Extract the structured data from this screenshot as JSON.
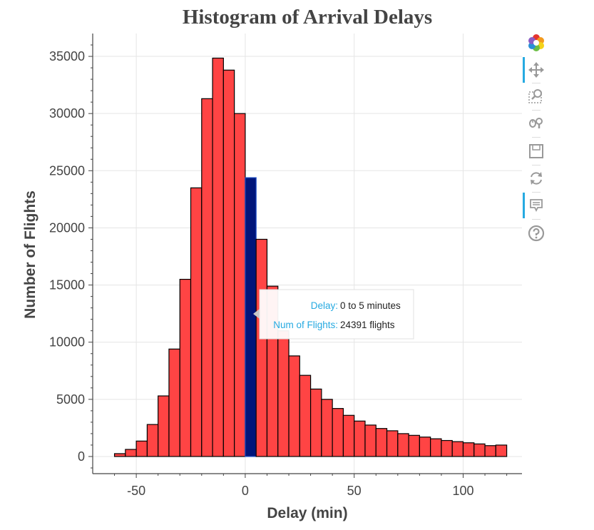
{
  "colors": {
    "bar_fill": "#ff4444",
    "bar_stroke": "#000000",
    "highlight_fill": "#00157a",
    "highlight_stroke": "#1f4fc6",
    "grid": "#e5e5e5",
    "axis": "#444444",
    "tooltip_label": "#26aae1",
    "tool_active": "#26aae1"
  },
  "tooltip": {
    "delay_label": "Delay:",
    "delay_value": "0 to 5 minutes",
    "count_label": "Num of Flights:",
    "count_value": "24391 flights"
  },
  "toolbar": {
    "tools": [
      {
        "name": "bokeh-logo-icon",
        "active": false
      },
      {
        "name": "pan-tool-icon",
        "active": true
      },
      {
        "name": "box-zoom-tool-icon",
        "active": false
      },
      {
        "name": "wheel-zoom-tool-icon",
        "active": false
      },
      {
        "name": "save-tool-icon",
        "active": false
      },
      {
        "name": "reset-tool-icon",
        "active": false
      },
      {
        "name": "hover-tool-icon",
        "active": true
      },
      {
        "name": "help-tool-icon",
        "active": false
      }
    ]
  },
  "chart_data": {
    "type": "bar",
    "title": "Histogram of Arrival Delays",
    "xlabel": "Delay (min)",
    "ylabel": "Number of Flights",
    "xlim": [
      -70,
      127
    ],
    "ylim": [
      -1500,
      37000
    ],
    "grid": true,
    "x_ticks": [
      -50,
      0,
      50,
      100
    ],
    "y_ticks": [
      0,
      5000,
      10000,
      15000,
      20000,
      25000,
      30000,
      35000
    ],
    "bin_width": 5,
    "bin_starts": [
      -60,
      -55,
      -50,
      -45,
      -40,
      -35,
      -30,
      -25,
      -20,
      -15,
      -10,
      -5,
      0,
      5,
      10,
      15,
      20,
      25,
      30,
      35,
      40,
      45,
      50,
      55,
      60,
      65,
      70,
      75,
      80,
      85,
      90,
      95,
      100,
      105,
      110,
      115
    ],
    "values": [
      250,
      620,
      1350,
      2800,
      5300,
      9400,
      15500,
      23500,
      31300,
      34850,
      33800,
      30000,
      24391,
      19000,
      14900,
      11000,
      8800,
      7100,
      5900,
      5000,
      4200,
      3600,
      3100,
      2750,
      2450,
      2250,
      2000,
      1850,
      1700,
      1550,
      1400,
      1300,
      1200,
      1100,
      950,
      1000
    ],
    "highlighted_bin_index": 12
  }
}
